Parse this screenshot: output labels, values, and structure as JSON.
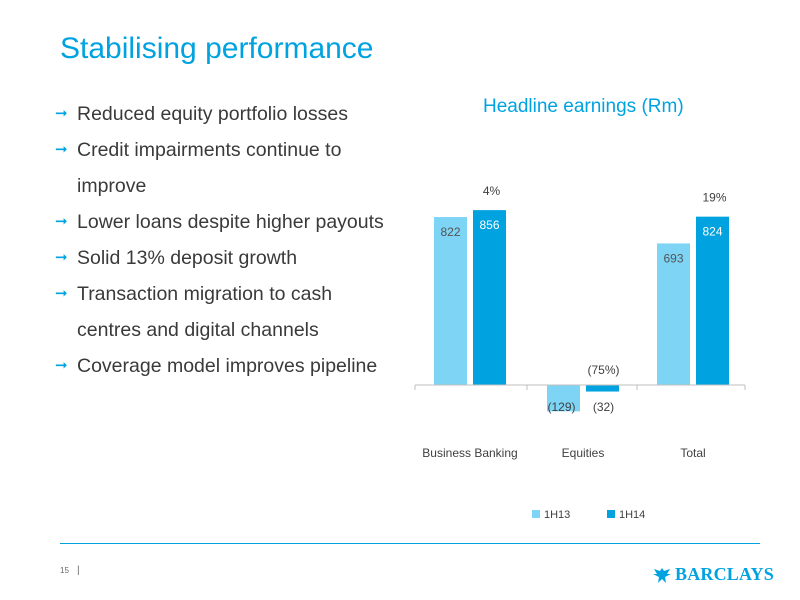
{
  "slide": {
    "title": "Stabilising performance",
    "bullets": [
      "Reduced equity portfolio losses",
      "Credit impairments continue to improve",
      "Lower loans despite higher payouts",
      "Solid 13% deposit growth",
      "Transaction migration to cash centres and digital channels",
      "Coverage model improves pipeline"
    ],
    "page_number": "15",
    "page_separator": "|",
    "logo_text": "BARCLAYS"
  },
  "colors": {
    "accent": "#00a3e0",
    "series_1H13": "#7dd4f5",
    "series_1H14": "#00a3e0",
    "axis": "#bfbfbf"
  },
  "chart_data": {
    "type": "bar",
    "title": "Headline earnings (Rm)",
    "categories": [
      "Business Banking",
      "Equities",
      "Total"
    ],
    "series": [
      {
        "name": "1H13",
        "values": [
          822,
          -129,
          693
        ],
        "labels": [
          "822",
          "(129)",
          "693"
        ]
      },
      {
        "name": "1H14",
        "values": [
          856,
          -32,
          824
        ],
        "labels": [
          "856",
          "(32)",
          "824"
        ]
      }
    ],
    "change_labels": [
      "4%",
      "(75%)",
      "19%"
    ],
    "ylim": [
      -129,
      900
    ],
    "grid": false,
    "legend": "bottom",
    "xlabel": "",
    "ylabel": ""
  }
}
